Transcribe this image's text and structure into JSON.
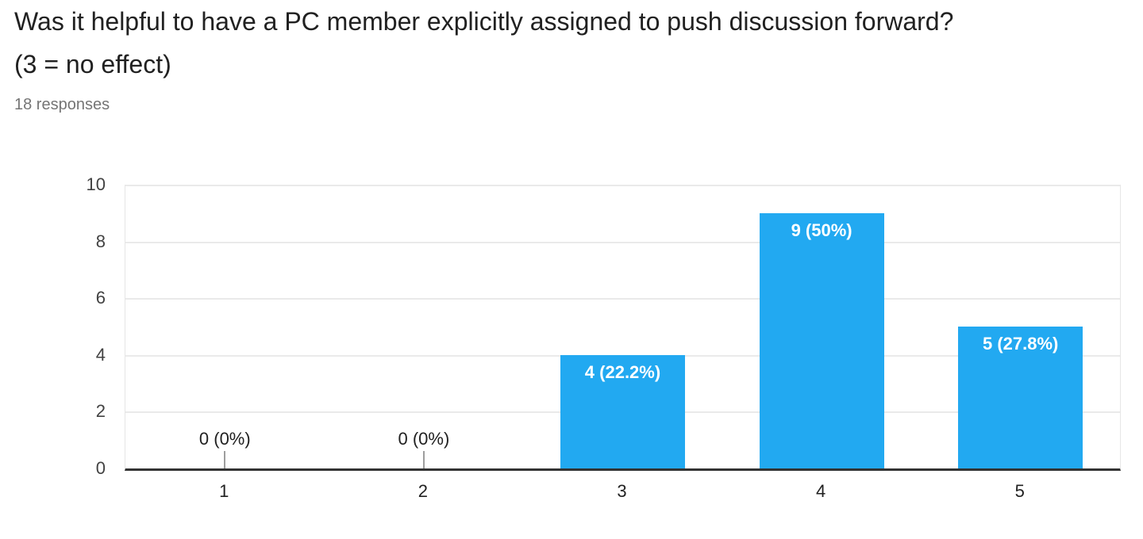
{
  "chart_data": {
    "type": "bar",
    "title": "Was it helpful to have a PC member explicitly assigned to push discussion forward? (3 = no effect)",
    "subtitle": "18 responses",
    "categories": [
      "1",
      "2",
      "3",
      "4",
      "5"
    ],
    "values": [
      0,
      0,
      4,
      9,
      5
    ],
    "bar_labels": [
      "0 (0%)",
      "0 (0%)",
      "4 (22.2%)",
      "9 (50%)",
      "5 (27.8%)"
    ],
    "ylim": [
      0,
      10
    ],
    "yticks": [
      0,
      2,
      4,
      6,
      8,
      10
    ],
    "grid": true,
    "legend": "none",
    "bar_color": "#22a9f1",
    "colors": {
      "title": "#212121",
      "subtitle": "#757575",
      "axis_line": "#333333",
      "gridline": "#eaeaea",
      "y_tick_label": "#424242",
      "x_tick_label": "#212121",
      "bar_label": "#ffffff",
      "zero_label": "#212121",
      "zero_stub": "#9e9e9e"
    }
  }
}
